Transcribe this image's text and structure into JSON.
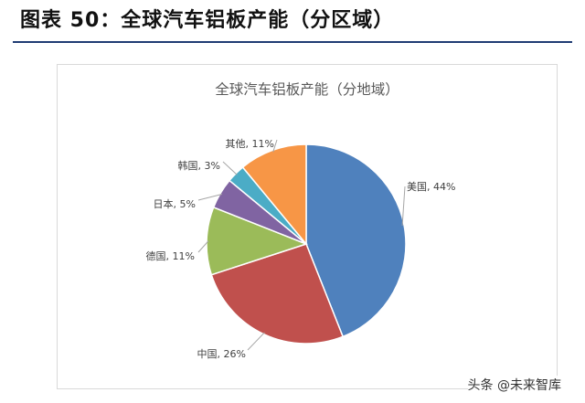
{
  "figure_title": "图表 50：全球汽车铝板产能（分区域）",
  "watermark": "头条 @未来智库",
  "chart_data": {
    "type": "pie",
    "title": "全球汽车铝板产能（分地域）",
    "slices": [
      {
        "label": "美国",
        "value": 44,
        "color": "#4f81bd",
        "side": "right"
      },
      {
        "label": "中国",
        "value": 26,
        "color": "#c0504d",
        "side": "left"
      },
      {
        "label": "德国",
        "value": 11,
        "color": "#9bbb59",
        "side": "left"
      },
      {
        "label": "日本",
        "value": 5,
        "color": "#8064a2",
        "side": "left"
      },
      {
        "label": "韩国",
        "value": 3,
        "color": "#4bacc6",
        "side": "left"
      },
      {
        "label": "其他",
        "value": 11,
        "color": "#f79646",
        "side": "left"
      }
    ],
    "label_format": "{label}, {value}%",
    "start_angle_deg": 0,
    "direction": "clockwise"
  }
}
